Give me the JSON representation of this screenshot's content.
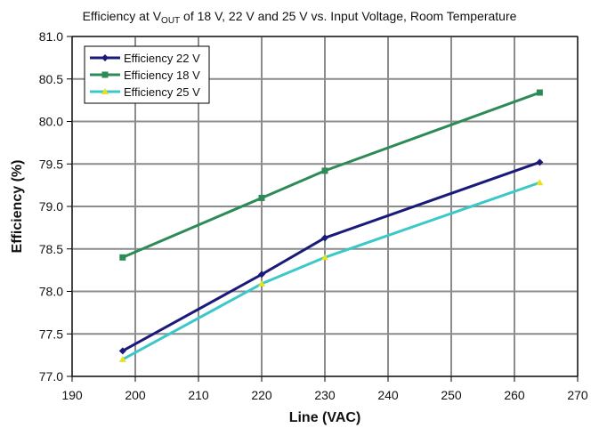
{
  "chart_data": {
    "type": "line",
    "title": {
      "prefix": "Efficiency at V",
      "subscript": "OUT",
      "suffix": " of 18 V, 22 V and 25 V vs. Input Voltage, Room Temperature"
    },
    "xlabel": "Line (VAC)",
    "ylabel": "Efficiency (%)",
    "xlim": [
      190,
      270
    ],
    "ylim": [
      77.0,
      81.0
    ],
    "xticks": [
      "190",
      "200",
      "210",
      "220",
      "230",
      "240",
      "250",
      "260",
      "270"
    ],
    "yticks": [
      "77.0",
      "77.5",
      "78.0",
      "78.5",
      "79.0",
      "79.5",
      "80.0",
      "80.5",
      "81.0"
    ],
    "grid": true,
    "legend_position": "top-left",
    "series": [
      {
        "name": "Efficiency 22 V",
        "color": "#1a1a7a",
        "marker": "diamond",
        "x": [
          198,
          220,
          230,
          264
        ],
        "y": [
          77.3,
          78.2,
          78.63,
          79.52
        ]
      },
      {
        "name": "Efficiency 18 V",
        "color": "#2e8b57",
        "marker": "square",
        "x": [
          198,
          220,
          230,
          264
        ],
        "y": [
          78.4,
          79.1,
          79.42,
          80.34
        ]
      },
      {
        "name": "Efficiency 25 V",
        "color": "#3cc8c8",
        "marker": "triangle",
        "marker_color": "#e8e020",
        "x": [
          198,
          220,
          230,
          264
        ],
        "y": [
          77.2,
          78.09,
          78.4,
          79.28
        ]
      }
    ]
  }
}
